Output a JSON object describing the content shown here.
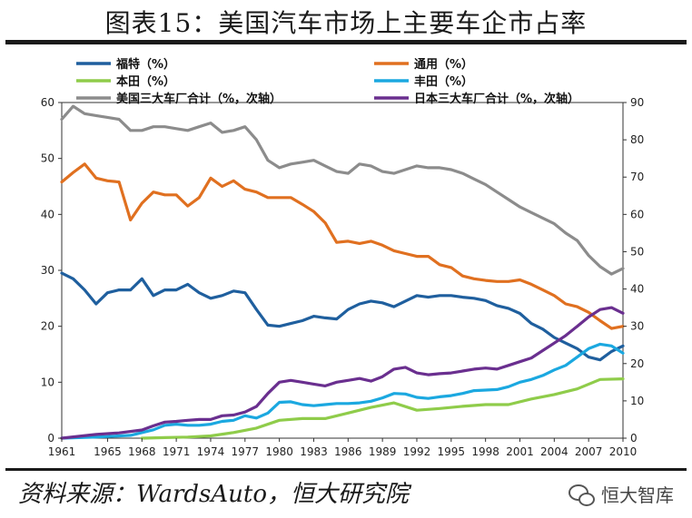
{
  "header": {
    "title": "图表15：美国汽车市场上主要车企市占率"
  },
  "footer": {
    "source": "资料来源：WardsAuto，恒大研究院",
    "watermark": "恒大智库"
  },
  "chart_data": {
    "type": "line",
    "title": "",
    "xlabel": "",
    "ylabel": "",
    "ylim": [
      0,
      60
    ],
    "y2lim": [
      0,
      90
    ],
    "y_ticks": [
      0,
      10,
      20,
      30,
      40,
      50,
      60
    ],
    "y2_ticks": [
      0,
      10,
      20,
      30,
      40,
      50,
      60,
      70,
      80,
      90
    ],
    "x_ticks": [
      1961,
      1965,
      1968,
      1971,
      1974,
      1977,
      1980,
      1983,
      1986,
      1989,
      1992,
      1995,
      1998,
      2001,
      2004,
      2007,
      2010
    ],
    "xlim": [
      1961,
      2010
    ],
    "legend_position": "top",
    "series": [
      {
        "name": "福特（%）",
        "axis": "left",
        "color": "#1f5f9e",
        "x": [
          1961,
          1962,
          1963,
          1964,
          1965,
          1966,
          1967,
          1968,
          1969,
          1970,
          1971,
          1972,
          1973,
          1974,
          1975,
          1976,
          1977,
          1978,
          1979,
          1980,
          1981,
          1982,
          1983,
          1984,
          1985,
          1986,
          1987,
          1988,
          1989,
          1990,
          1991,
          1992,
          1993,
          1994,
          1995,
          1996,
          1997,
          1998,
          1999,
          2000,
          2001,
          2002,
          2003,
          2004,
          2005,
          2006,
          2007,
          2008,
          2009,
          2010
        ],
        "y": [
          29.5,
          28.5,
          26.5,
          24.0,
          26.0,
          26.5,
          26.5,
          28.5,
          25.5,
          26.5,
          26.5,
          27.5,
          26.0,
          25.0,
          25.5,
          26.3,
          26.0,
          23.0,
          20.2,
          20.0,
          20.5,
          21.0,
          21.8,
          21.5,
          21.3,
          23.0,
          24.0,
          24.5,
          24.2,
          23.5,
          24.5,
          25.5,
          25.2,
          25.5,
          25.5,
          25.2,
          25.0,
          24.6,
          23.7,
          23.2,
          22.3,
          20.5,
          19.5,
          18.0,
          17.0,
          16.0,
          14.5,
          14.0,
          15.5,
          16.5
        ]
      },
      {
        "name": "通用（%）",
        "axis": "left",
        "color": "#e07020",
        "x": [
          1961,
          1962,
          1963,
          1964,
          1965,
          1966,
          1967,
          1968,
          1969,
          1970,
          1971,
          1972,
          1973,
          1974,
          1975,
          1976,
          1977,
          1978,
          1979,
          1980,
          1981,
          1982,
          1983,
          1984,
          1985,
          1986,
          1987,
          1988,
          1989,
          1990,
          1991,
          1992,
          1993,
          1994,
          1995,
          1996,
          1997,
          1998,
          1999,
          2000,
          2001,
          2002,
          2003,
          2004,
          2005,
          2006,
          2007,
          2008,
          2009,
          2010
        ],
        "y": [
          45.8,
          47.5,
          49.0,
          46.5,
          46.0,
          45.8,
          39.0,
          42.0,
          44.0,
          43.5,
          43.5,
          41.5,
          43.0,
          46.5,
          45.0,
          46.0,
          44.5,
          44.0,
          43.0,
          43.0,
          43.0,
          41.8,
          40.5,
          38.5,
          35.0,
          35.2,
          34.8,
          35.2,
          34.5,
          33.5,
          33.0,
          32.5,
          32.5,
          31.0,
          30.5,
          29.0,
          28.5,
          28.2,
          28.0,
          28.0,
          28.3,
          27.5,
          26.5,
          25.5,
          24.0,
          23.5,
          22.5,
          21.0,
          19.6,
          20.0
        ]
      },
      {
        "name": "本田（%）",
        "axis": "left",
        "color": "#8fcc4a",
        "x": [
          1968,
          1970,
          1972,
          1974,
          1976,
          1978,
          1980,
          1982,
          1984,
          1986,
          1988,
          1990,
          1992,
          1994,
          1996,
          1998,
          2000,
          2002,
          2004,
          2006,
          2008,
          2010
        ],
        "y": [
          0.0,
          0.1,
          0.2,
          0.4,
          1.0,
          1.8,
          3.2,
          3.5,
          3.5,
          4.5,
          5.5,
          6.3,
          5.0,
          5.3,
          5.7,
          6.0,
          6.0,
          7.0,
          7.8,
          8.8,
          10.5,
          10.6
        ]
      },
      {
        "name": "丰田（%）",
        "axis": "left",
        "color": "#1ba8e0",
        "x": [
          1961,
          1964,
          1967,
          1969,
          1970,
          1971,
          1972,
          1973,
          1974,
          1975,
          1976,
          1977,
          1978,
          1979,
          1980,
          1981,
          1982,
          1983,
          1984,
          1985,
          1986,
          1987,
          1988,
          1989,
          1990,
          1991,
          1992,
          1993,
          1994,
          1995,
          1996,
          1997,
          1998,
          1999,
          2000,
          2001,
          2002,
          2003,
          2004,
          2005,
          2006,
          2007,
          2008,
          2009,
          2010
        ],
        "y": [
          0.0,
          0.2,
          0.5,
          1.5,
          2.3,
          2.5,
          2.3,
          2.3,
          2.5,
          3.0,
          3.2,
          4.0,
          3.6,
          4.5,
          6.4,
          6.5,
          6.0,
          5.8,
          6.0,
          6.2,
          6.2,
          6.3,
          6.6,
          7.2,
          8.0,
          7.9,
          7.3,
          7.1,
          7.4,
          7.6,
          8.0,
          8.5,
          8.6,
          8.7,
          9.2,
          10.0,
          10.5,
          11.2,
          12.2,
          13.0,
          14.5,
          16.0,
          16.8,
          16.5,
          15.2
        ]
      },
      {
        "name": "美国三大车厂合计（%，次轴）",
        "axis": "right",
        "color": "#8c8c8c",
        "x": [
          1961,
          1962,
          1963,
          1964,
          1965,
          1966,
          1967,
          1968,
          1969,
          1970,
          1971,
          1972,
          1973,
          1974,
          1975,
          1976,
          1977,
          1978,
          1979,
          1980,
          1981,
          1982,
          1983,
          1984,
          1985,
          1986,
          1987,
          1988,
          1989,
          1990,
          1991,
          1992,
          1993,
          1994,
          1995,
          1996,
          1997,
          1998,
          1999,
          2000,
          2001,
          2002,
          2003,
          2004,
          2005,
          2006,
          2007,
          2008,
          2009,
          2010
        ],
        "y": [
          85.5,
          89.0,
          87.0,
          86.5,
          86.0,
          85.5,
          82.5,
          82.5,
          83.5,
          83.5,
          83.0,
          82.5,
          83.5,
          84.5,
          82.0,
          82.5,
          83.5,
          80.0,
          74.5,
          72.5,
          73.5,
          74.0,
          74.5,
          73.0,
          71.5,
          71.0,
          73.5,
          73.0,
          71.5,
          71.0,
          72.0,
          73.0,
          72.5,
          72.5,
          72.0,
          71.0,
          69.5,
          68.0,
          66.0,
          64.0,
          62.0,
          60.5,
          59.0,
          57.5,
          55.0,
          53.0,
          49.0,
          46.0,
          44.0,
          45.5
        ]
      },
      {
        "name": "日本三大车厂合计（%，次轴）",
        "axis": "right",
        "color": "#6a2f8f",
        "x": [
          1961,
          1964,
          1966,
          1968,
          1969,
          1970,
          1971,
          1972,
          1973,
          1974,
          1975,
          1976,
          1977,
          1978,
          1979,
          1980,
          1981,
          1982,
          1983,
          1984,
          1985,
          1986,
          1987,
          1988,
          1989,
          1990,
          1991,
          1992,
          1993,
          1994,
          1995,
          1996,
          1997,
          1998,
          1999,
          2000,
          2001,
          2002,
          2003,
          2004,
          2005,
          2006,
          2007,
          2008,
          2009,
          2010
        ],
        "y": [
          0.0,
          1.0,
          1.4,
          2.2,
          3.3,
          4.3,
          4.5,
          4.8,
          5.0,
          5.0,
          6.0,
          6.2,
          7.0,
          8.5,
          12.0,
          15.0,
          15.5,
          15.0,
          14.5,
          14.0,
          15.0,
          15.5,
          16.0,
          15.3,
          16.5,
          18.5,
          19.0,
          17.5,
          17.0,
          17.3,
          17.5,
          18.0,
          18.5,
          18.8,
          18.5,
          19.5,
          20.5,
          21.5,
          23.5,
          25.5,
          27.5,
          30.0,
          32.5,
          34.5,
          35.0,
          33.5
        ]
      }
    ]
  }
}
